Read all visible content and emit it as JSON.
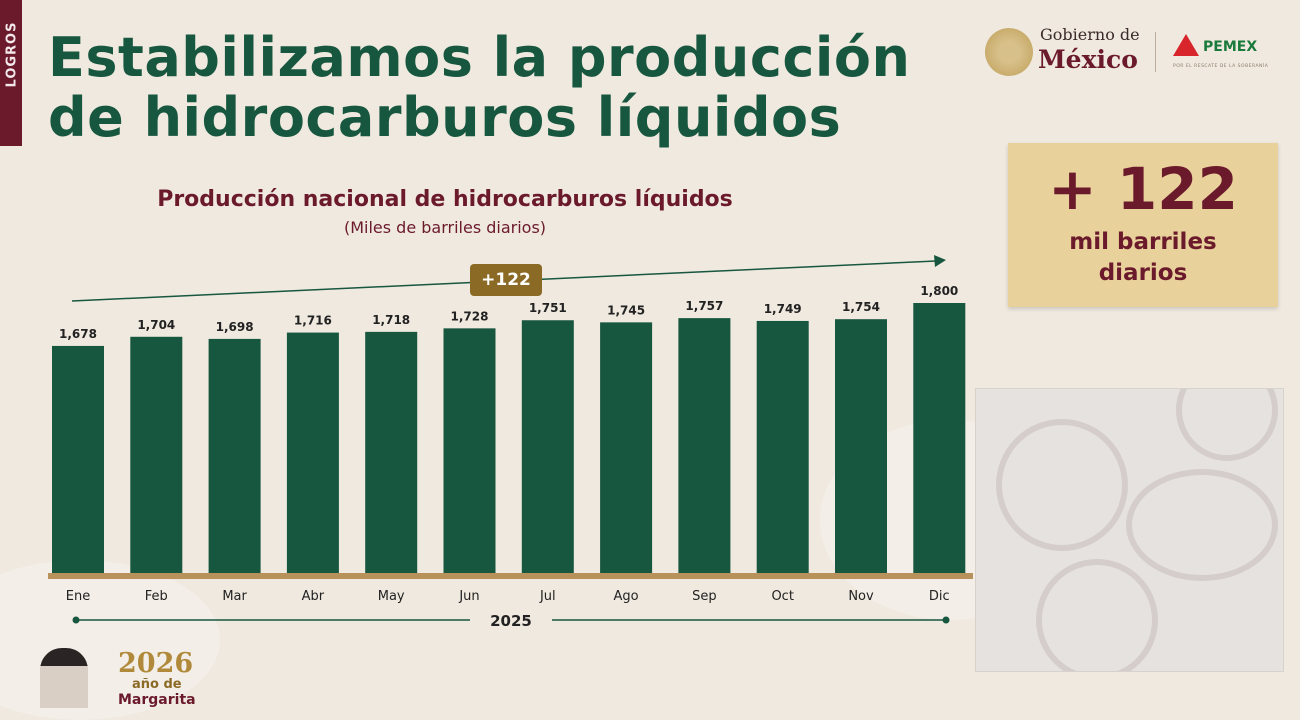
{
  "side_tab": {
    "label": "LOGROS"
  },
  "title": {
    "line1": "Estabilizamos la producción",
    "line2": "de hidrocarburos líquidos"
  },
  "logos": {
    "gobierno_line1": "Gobierno de",
    "gobierno_line2": "México",
    "pemex": "PEMEX",
    "pemex_tagline": "POR EL RESCATE DE LA SOBERANÍA"
  },
  "kpi": {
    "value": "+ 122",
    "unit_line1": "mil barriles",
    "unit_line2": "diarios"
  },
  "footer": {
    "year": "2026",
    "line2": "año de",
    "line3": "Margarita"
  },
  "colors": {
    "bar": "#17563f",
    "accent_gold": "#8b6a26",
    "brand_maroon": "#6b1a2c",
    "kpi_bg": "#e8d19b",
    "baseline": "#b8925a"
  },
  "chart_data": {
    "type": "bar",
    "title": "Producción nacional de hidrocarburos líquidos",
    "subtitle": "(Miles de barriles diarios)",
    "categories": [
      "Ene",
      "Feb",
      "Mar",
      "Abr",
      "May",
      "Jun",
      "Jul",
      "Ago",
      "Sep",
      "Oct",
      "Nov",
      "Dic"
    ],
    "values": [
      1678,
      1704,
      1698,
      1716,
      1718,
      1728,
      1751,
      1745,
      1757,
      1749,
      1754,
      1800
    ],
    "data_labels": [
      "1,678",
      "1,704",
      "1,698",
      "1,716",
      "1,718",
      "1,728",
      "1,751",
      "1,745",
      "1,757",
      "1,749",
      "1,754",
      "1,800"
    ],
    "xlabel": "2025",
    "trend_annotation": "+122",
    "ylim": [
      1033,
      1800
    ],
    "grid": false,
    "y_axis_visible": false
  }
}
